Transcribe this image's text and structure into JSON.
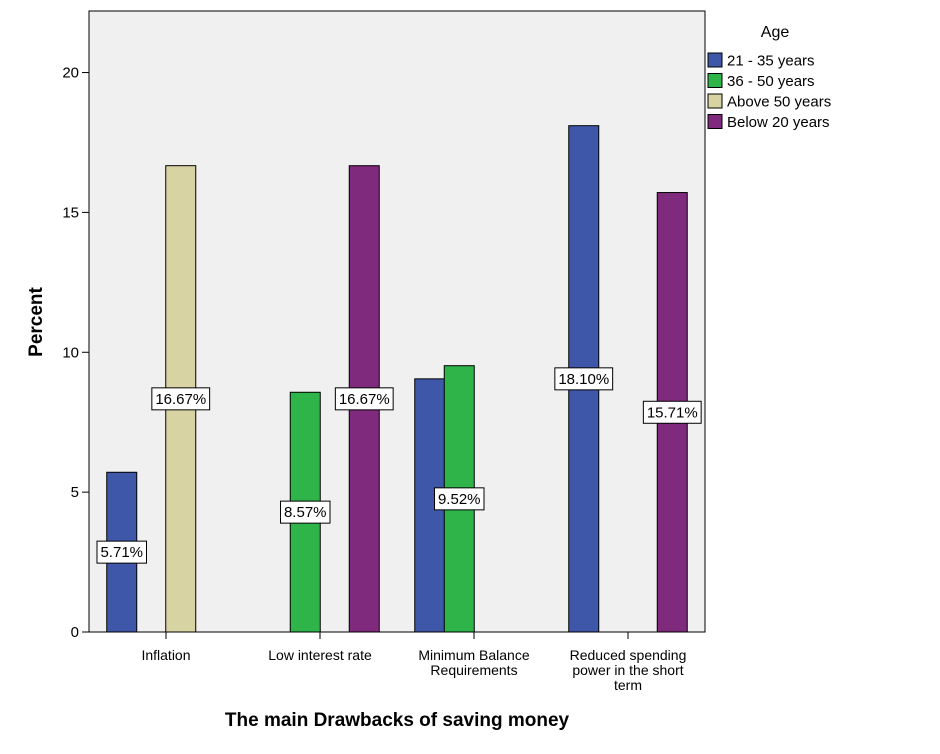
{
  "chart_data": {
    "type": "bar",
    "xlabel": "The main Drawbacks of saving money",
    "ylabel": "Percent",
    "ylim": [
      0,
      22.2
    ],
    "yticks": [
      0,
      5,
      10,
      15,
      20
    ],
    "grid": false,
    "legend_position": "right",
    "legend_title": "Age",
    "categories": [
      [
        "Inflation"
      ],
      [
        "Low interest rate"
      ],
      [
        "Minimum Balance",
        "Requirements"
      ],
      [
        "Reduced spending",
        "power in the short",
        "term"
      ]
    ],
    "series": [
      {
        "name": "21 - 35 years",
        "color": "#3f57a9",
        "values": [
          5.71,
          null,
          9.05,
          18.1
        ]
      },
      {
        "name": "36 - 50 years",
        "color": "#2fb44a",
        "values": [
          null,
          8.57,
          9.52,
          null
        ]
      },
      {
        "name": "Above 50 years",
        "color": "#d8d3a2",
        "values": [
          16.67,
          null,
          null,
          null
        ]
      },
      {
        "name": "Below 20 years",
        "color": "#7f2a7c",
        "values": [
          null,
          16.67,
          null,
          15.71
        ]
      }
    ],
    "data_labels": [
      {
        "category": 0,
        "series": 0,
        "text": "5.71%"
      },
      {
        "category": 0,
        "series": 2,
        "text": "16.67%"
      },
      {
        "category": 1,
        "series": 1,
        "text": "8.57%"
      },
      {
        "category": 1,
        "series": 3,
        "text": "16.67%"
      },
      {
        "category": 2,
        "series": 1,
        "text": "9.52%"
      },
      {
        "category": 3,
        "series": 0,
        "text": "18.10%"
      },
      {
        "category": 3,
        "series": 3,
        "text": "15.71%"
      }
    ]
  }
}
